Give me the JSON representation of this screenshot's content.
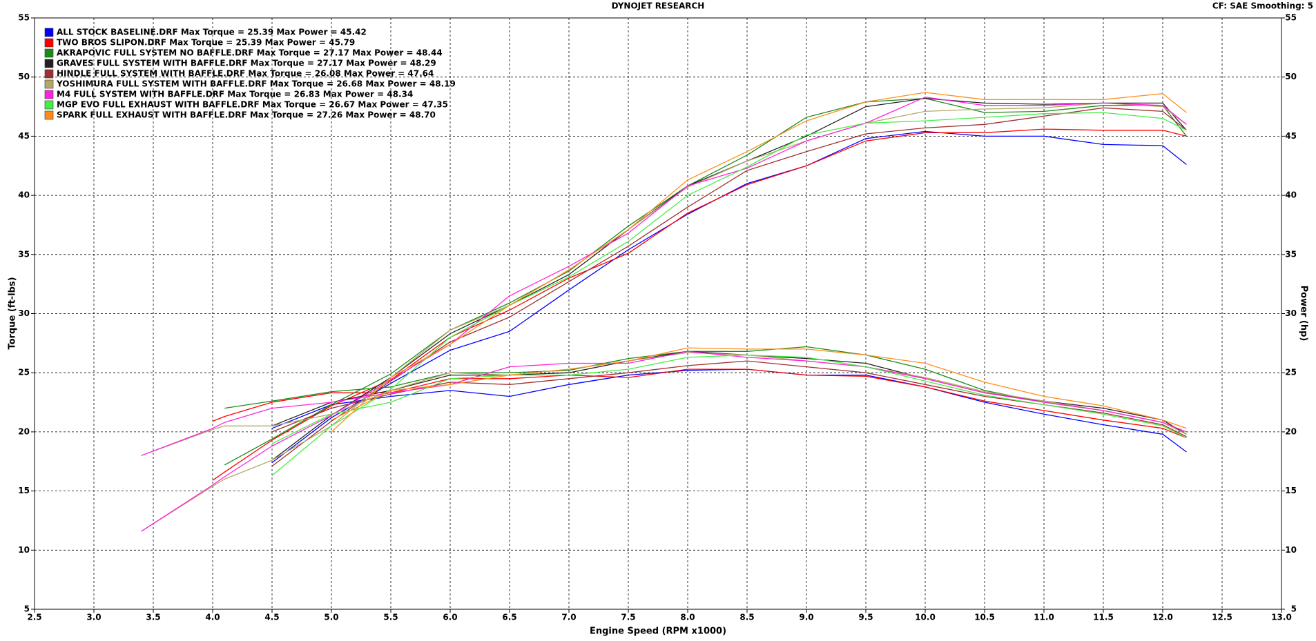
{
  "chart_data": {
    "type": "line",
    "title": "DYNOJET RESEARCH",
    "subtitle": "CF: SAE  Smoothing: 5",
    "x_label": "Engine Speed (RPM x1000)",
    "y_label": "Torque (ft-lbs)",
    "y2_label": "Power (hp)",
    "grid": true,
    "legend": "upper left",
    "xlim": [
      2.5,
      13
    ],
    "xticks": [
      2.5,
      {
        "value": 3,
        "label": "3.0"
      },
      3.5,
      {
        "value": 4,
        "label": "4.0"
      },
      4.5,
      {
        "value": 5,
        "label": "5.0"
      },
      5.5,
      {
        "value": 6,
        "label": "6.0"
      },
      6.5,
      {
        "value": 7,
        "label": "7.0"
      },
      7.5,
      {
        "value": 8,
        "label": "8.0"
      },
      8.5,
      {
        "value": 9,
        "label": "9.0"
      },
      9.5,
      {
        "value": 10,
        "label": "10.0"
      },
      10.5,
      {
        "value": 11,
        "label": "11.0"
      },
      11.5,
      {
        "value": 12,
        "label": "12.0"
      },
      12.5,
      {
        "value": 13,
        "label": "13.0"
      }
    ],
    "ylim": [
      5,
      55
    ],
    "yticks": [
      5,
      10,
      15,
      20,
      25,
      30,
      35,
      40,
      45,
      50,
      55
    ],
    "y2lim": [
      5,
      55
    ],
    "y2ticks": [
      5,
      10,
      15,
      20,
      25,
      30,
      35,
      40,
      45,
      50,
      55
    ],
    "x": [
      3.4,
      4.0,
      4.1,
      4.5,
      5.0,
      5.5,
      6.0,
      6.5,
      7.0,
      7.5,
      8.0,
      8.5,
      9.0,
      9.5,
      10.0,
      10.5,
      11.0,
      11.5,
      12.0,
      12.2
    ],
    "runs": [
      {
        "name": "ALL STOCK BASELINE.DRF Max Torque = 25.39 Max Power = 45.42",
        "color": "#0000ff",
        "torque": [
          null,
          null,
          null,
          20.3,
          22.3,
          23.0,
          23.5,
          23.0,
          24.0,
          24.8,
          25.2,
          25.3,
          24.8,
          24.8,
          23.8,
          22.5,
          21.5,
          20.6,
          19.8,
          18.3
        ],
        "power": [
          null,
          null,
          null,
          17.4,
          21.2,
          24.1,
          26.9,
          28.5,
          32.0,
          35.4,
          38.4,
          41.0,
          42.5,
          44.8,
          45.4,
          45.0,
          45.0,
          44.3,
          44.2,
          42.6
        ]
      },
      {
        "name": "TWO BROS SLIPON.DRF Max Torque = 25.39 Max Power = 45.79",
        "color": "#ff0000",
        "torque": [
          null,
          20.9,
          21.3,
          22.5,
          23.3,
          23.3,
          24.5,
          24.5,
          24.8,
          24.6,
          25.3,
          25.3,
          24.8,
          24.7,
          23.8,
          22.6,
          21.8,
          21.0,
          20.3,
          19.5
        ],
        "power": [
          null,
          15.9,
          16.6,
          19.3,
          22.2,
          24.4,
          28.0,
          30.3,
          33.0,
          35.1,
          38.5,
          40.9,
          42.5,
          44.6,
          45.3,
          45.3,
          45.6,
          45.5,
          45.5,
          45.0
        ]
      },
      {
        "name": "AKRAPOVIC FULL SYSTEM NO BAFFLE.DRF Max Torque = 27.17 Max Power = 48.44",
        "color": "#1a8c1a",
        "torque": [
          null,
          null,
          22.0,
          22.6,
          23.4,
          23.8,
          25.0,
          25.0,
          25.2,
          26.2,
          26.8,
          26.8,
          27.2,
          26.5,
          25.3,
          23.5,
          22.5,
          21.8,
          20.8,
          19.8
        ],
        "power": [
          null,
          null,
          17.2,
          19.4,
          22.3,
          24.9,
          28.6,
          30.9,
          33.6,
          37.4,
          40.8,
          43.4,
          46.6,
          47.9,
          48.2,
          47.0,
          47.1,
          47.6,
          47.6,
          45.0
        ]
      },
      {
        "name": "GRAVES FULL SYSTEM WITH BAFFLE.DRF Max Torque = 27.17 Max Power = 48.29",
        "color": "#222222",
        "torque": [
          null,
          null,
          null,
          20.5,
          22.5,
          23.5,
          24.8,
          24.8,
          25.0,
          26.0,
          26.8,
          26.5,
          26.2,
          25.8,
          24.5,
          23.3,
          22.6,
          22.0,
          21.0,
          19.8
        ],
        "power": [
          null,
          null,
          null,
          17.6,
          21.4,
          24.6,
          28.3,
          30.7,
          33.3,
          37.1,
          40.8,
          42.9,
          45.0,
          47.5,
          48.2,
          47.8,
          47.7,
          47.8,
          47.8,
          45.5
        ]
      },
      {
        "name": "HINDLE FULL SYSTEM WITH BAFFLE.DRF Max Torque = 26.08 Max Power = 47.64",
        "color": "#a03030",
        "torque": [
          null,
          null,
          null,
          20.0,
          22.0,
          23.2,
          24.2,
          24.0,
          24.5,
          25.0,
          25.6,
          26.0,
          25.5,
          25.0,
          24.0,
          23.0,
          22.3,
          21.6,
          20.6,
          19.6
        ],
        "power": [
          null,
          null,
          null,
          17.1,
          20.9,
          24.3,
          27.6,
          29.7,
          32.7,
          35.7,
          39.0,
          42.1,
          43.7,
          45.2,
          45.7,
          46.0,
          46.7,
          47.4,
          47.1,
          45.5
        ]
      },
      {
        "name": "YOSHIMURA FULL SYSTEM WITH BAFFLE.DRF Max Torque = 26.68 Max Power = 48.19",
        "color": "#b5a866",
        "torque": [
          18.0,
          20.2,
          20.5,
          20.5,
          21.5,
          23.5,
          25.0,
          24.8,
          25.3,
          26.0,
          26.7,
          26.5,
          26.0,
          25.5,
          24.6,
          23.4,
          22.6,
          21.8,
          20.8,
          19.8
        ],
        "power": [
          11.6,
          15.4,
          16.0,
          17.6,
          20.5,
          24.6,
          28.6,
          30.7,
          33.7,
          37.1,
          40.7,
          42.9,
          44.6,
          46.1,
          47.1,
          47.3,
          47.4,
          47.8,
          47.5,
          46.0
        ]
      },
      {
        "name": "M4 FULL SYSTEM WITH BAFFLE.DRF Max Torque = 26.83 Max Power = 48.34",
        "color": "#ff22dd",
        "torque": [
          18.0,
          20.3,
          20.8,
          22.0,
          22.5,
          23.3,
          24.0,
          25.5,
          25.8,
          25.8,
          26.8,
          26.3,
          26.0,
          25.5,
          24.5,
          23.3,
          22.5,
          21.8,
          20.8,
          20.0
        ],
        "power": [
          11.6,
          15.5,
          16.2,
          18.8,
          21.4,
          24.4,
          27.4,
          31.5,
          34.0,
          36.8,
          40.8,
          42.3,
          44.6,
          46.1,
          48.3,
          47.6,
          47.6,
          47.8,
          47.6,
          46.0
        ]
      },
      {
        "name": "MGP EVO FULL EXHAUST WITH BAFFLE.DRF Max Torque = 26.67 Max Power = 47.35",
        "color": "#44ee44",
        "torque": [
          null,
          null,
          null,
          19.0,
          21.5,
          22.5,
          24.5,
          24.8,
          24.8,
          25.3,
          26.3,
          26.5,
          26.3,
          25.5,
          24.3,
          23.1,
          22.3,
          21.5,
          20.5,
          19.5
        ],
        "power": [
          null,
          null,
          null,
          16.3,
          20.5,
          23.6,
          28.0,
          30.7,
          33.1,
          36.1,
          40.0,
          42.4,
          45.1,
          46.1,
          46.3,
          46.6,
          46.9,
          47.0,
          46.5,
          45.5
        ]
      },
      {
        "name": "SPARK FULL EXHAUST WITH BAFFLE.DRF Max Torque = 27.26 Max Power = 48.70",
        "color": "#ff8c1a",
        "torque": [
          null,
          null,
          null,
          null,
          21.0,
          23.5,
          24.0,
          24.8,
          25.3,
          26.0,
          27.1,
          27.0,
          27.0,
          26.5,
          25.8,
          24.2,
          23.0,
          22.2,
          21.0,
          20.3
        ],
        "power": [
          null,
          null,
          null,
          null,
          20.0,
          24.6,
          27.4,
          30.7,
          33.7,
          37.1,
          41.3,
          43.7,
          46.3,
          47.9,
          48.7,
          48.1,
          48.1,
          48.1,
          48.6,
          47.0
        ]
      }
    ]
  }
}
